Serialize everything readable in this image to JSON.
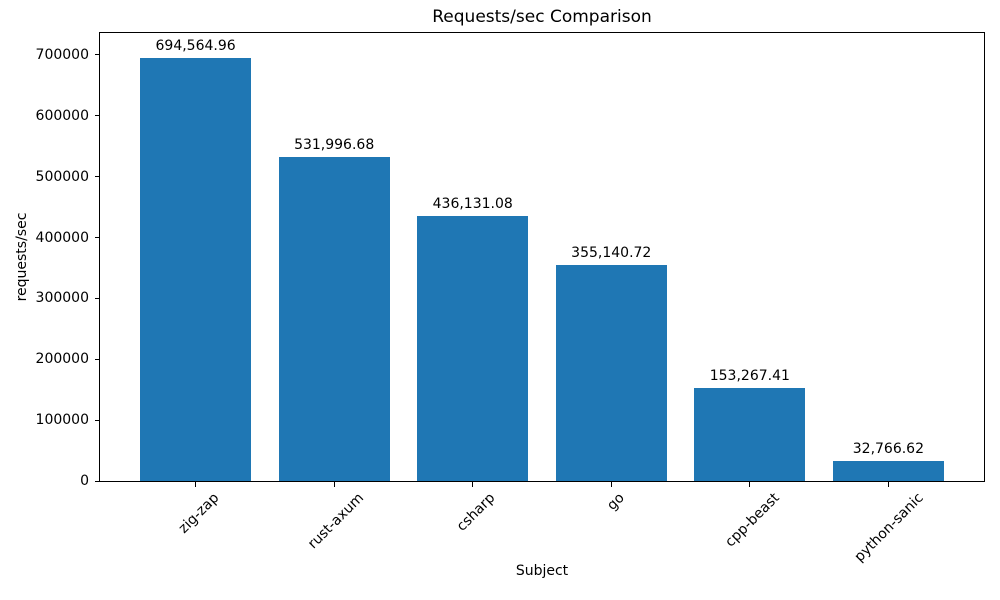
{
  "chart_data": {
    "type": "bar",
    "title": "Requests/sec Comparison",
    "xlabel": "Subject",
    "ylabel": "requests/sec",
    "categories": [
      "zig-zap",
      "rust-axum",
      "csharp",
      "go",
      "cpp-beast",
      "python-sanic"
    ],
    "values": [
      694564.96,
      531996.68,
      436131.08,
      355140.72,
      153267.41,
      32766.62
    ],
    "bar_labels": [
      "694,564.96",
      "531,996.68",
      "436,131.08",
      "355,140.72",
      "153,267.41",
      "32,766.62"
    ],
    "bar_color": "#1f77b4",
    "text_color": "#000000",
    "ylim": [
      0,
      736000
    ],
    "yticks": [
      0,
      100000,
      200000,
      300000,
      400000,
      500000,
      600000,
      700000
    ],
    "ytick_labels": [
      "0",
      "100000",
      "200000",
      "300000",
      "400000",
      "500000",
      "600000",
      "700000"
    ],
    "xtick_rotation_deg": 45,
    "grid": false,
    "legend": null
  }
}
